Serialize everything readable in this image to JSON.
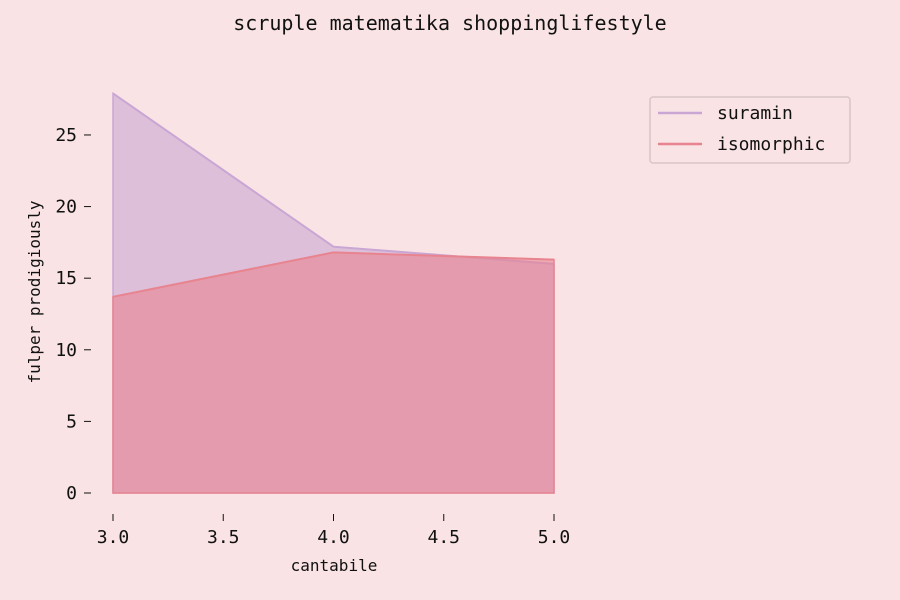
{
  "chart_data": {
    "type": "area",
    "title": "scruple matematika shoppinglifestyle",
    "xlabel": "cantabile",
    "ylabel": "fulper prodigiously",
    "x": [
      3.0,
      4.0,
      5.0
    ],
    "xlim": [
      3.0,
      5.0
    ],
    "ylim": [
      0,
      28
    ],
    "xticks": [
      "3.0",
      "3.5",
      "4.0",
      "4.5",
      "5.0"
    ],
    "yticks": [
      "0",
      "5",
      "10",
      "15",
      "20",
      "25"
    ],
    "grid": false,
    "legend_position": "top-right",
    "series": [
      {
        "name": "suramin",
        "values": [
          27.9,
          17.2,
          16.0
        ],
        "color": "#c9a6d4"
      },
      {
        "name": "isomorphic",
        "values": [
          13.7,
          16.8,
          16.3
        ],
        "color": "#e8848f"
      }
    ]
  }
}
